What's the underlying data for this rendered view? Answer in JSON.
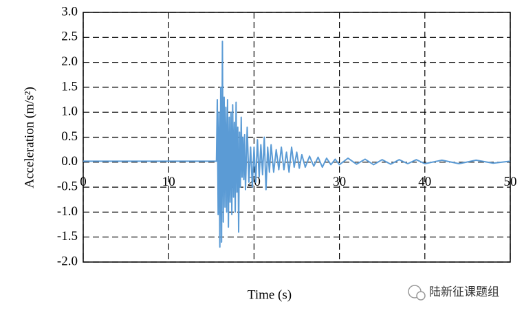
{
  "chart_data": {
    "type": "line",
    "x_label": "Time (s)",
    "y_label": "Acceleration (m/s²)",
    "watermark": "陆新征课题组",
    "color": "#5b9bd5",
    "grid": true,
    "xlim": [
      0,
      50
    ],
    "ylim": [
      -2,
      3
    ],
    "xticks": [
      0,
      10,
      20,
      30,
      40,
      50
    ],
    "yticks": [
      {
        "value": 3,
        "label": "3.0"
      },
      2.5,
      {
        "value": 2,
        "label": "2.0"
      },
      1.5,
      {
        "value": 1,
        "label": "1.0"
      },
      0.5,
      {
        "value": 0,
        "label": "0.0"
      },
      -0.5,
      {
        "value": -1,
        "label": "-1.0"
      },
      -1.5,
      {
        "value": -2,
        "label": "-2.0"
      }
    ],
    "x": [
      0,
      5,
      10,
      15,
      15.6,
      15.7,
      15.8,
      15.9,
      16.0,
      16.1,
      16.2,
      16.3,
      16.4,
      16.5,
      16.6,
      16.7,
      16.8,
      16.9,
      17.0,
      17.1,
      17.2,
      17.3,
      17.4,
      17.5,
      17.6,
      17.7,
      17.8,
      17.9,
      18.0,
      18.1,
      18.2,
      18.3,
      18.4,
      18.5,
      18.6,
      18.7,
      18.8,
      18.9,
      19.0,
      19.2,
      19.4,
      19.6,
      19.8,
      20.0,
      20.2,
      20.4,
      20.6,
      20.8,
      21.0,
      21.2,
      21.4,
      21.6,
      21.8,
      22.0,
      22.3,
      22.6,
      22.9,
      23.2,
      23.5,
      23.8,
      24.1,
      24.4,
      24.7,
      25.0,
      25.3,
      25.6,
      26.0,
      26.5,
      27.0,
      27.5,
      28.0,
      28.5,
      29.0,
      29.5,
      30.0,
      31,
      32,
      33,
      34,
      35,
      36,
      37,
      38,
      39,
      40,
      42,
      44,
      46,
      48,
      50
    ],
    "values": [
      0.02,
      0.02,
      0.02,
      0.02,
      0.02,
      1.25,
      -1.05,
      1.0,
      -1.7,
      1.5,
      -1.6,
      2.42,
      -1.2,
      1.3,
      -0.9,
      1.1,
      -1.0,
      1.25,
      -1.3,
      0.9,
      -0.8,
      1.0,
      -1.05,
      1.15,
      -0.7,
      0.8,
      -1.0,
      1.2,
      -0.6,
      0.7,
      -1.4,
      0.6,
      -0.5,
      0.9,
      -0.3,
      0.5,
      -0.35,
      0.55,
      -0.55,
      0.7,
      -0.4,
      0.3,
      -0.5,
      0.3,
      -0.4,
      0.45,
      -0.3,
      0.35,
      -0.25,
      0.5,
      -0.55,
      0.3,
      -0.2,
      0.35,
      -0.2,
      0.25,
      -0.15,
      0.3,
      -0.15,
      0.2,
      -0.2,
      0.3,
      -0.1,
      0.2,
      -0.12,
      0.15,
      -0.1,
      0.12,
      -0.08,
      0.1,
      -0.1,
      0.08,
      -0.05,
      0.06,
      -0.05,
      0.08,
      -0.04,
      0.06,
      -0.05,
      0.05,
      -0.04,
      0.05,
      -0.03,
      0.05,
      -0.03,
      0.04,
      -0.03,
      0.04,
      -0.02,
      0.02
    ]
  }
}
